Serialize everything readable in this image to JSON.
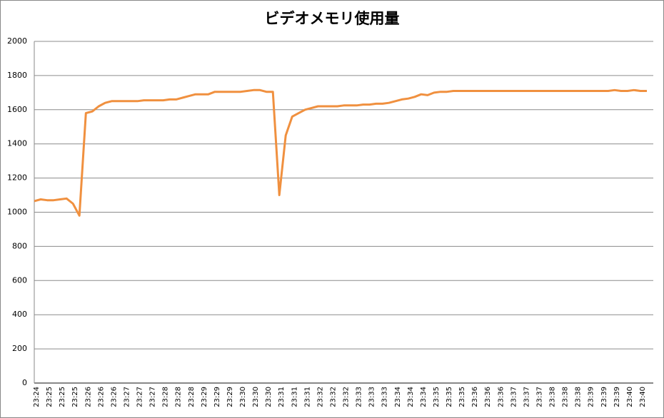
{
  "chart_data": {
    "type": "line",
    "title": "ビデオメモリ使用量",
    "categories": [
      "23:24",
      null,
      "23:25",
      null,
      "23:25",
      null,
      "23:25",
      null,
      "23:26",
      null,
      "23:26",
      null,
      "23:26",
      null,
      "23:27",
      null,
      "23:27",
      null,
      "23:27",
      null,
      "23:28",
      null,
      "23:28",
      null,
      "23:28",
      null,
      "23:29",
      null,
      "23:29",
      null,
      "23:29",
      null,
      "23:30",
      null,
      "23:30",
      null,
      "23:30",
      null,
      "23:31",
      null,
      "23:31",
      null,
      "23:31",
      null,
      "23:32",
      null,
      "23:32",
      null,
      "23:32",
      null,
      "23:33",
      null,
      "23:33",
      null,
      "23:33",
      null,
      "23:34",
      null,
      "23:34",
      null,
      "23:34",
      null,
      "23:35",
      null,
      "23:35",
      null,
      "23:35",
      null,
      "23:36",
      null,
      "23:36",
      null,
      "23:36",
      null,
      "23:37",
      null,
      "23:37",
      null,
      "23:37",
      null,
      "23:38",
      null,
      "23:38",
      null,
      "23:38",
      null,
      "23:39",
      null,
      "23:39",
      null,
      "23:39",
      null,
      "23:40",
      null,
      "23:40",
      null
    ],
    "series": [
      {
        "color": "#f0903f",
        "values": [
          1065,
          1075,
          1070,
          1070,
          1075,
          1080,
          1050,
          980,
          1580,
          1590,
          1620,
          1640,
          1650,
          1650,
          1650,
          1650,
          1650,
          1655,
          1655,
          1655,
          1655,
          1660,
          1660,
          1670,
          1680,
          1690,
          1690,
          1690,
          1705,
          1705,
          1705,
          1705,
          1705,
          1710,
          1715,
          1715,
          1705,
          1705,
          1100,
          1450,
          1560,
          1580,
          1600,
          1610,
          1620,
          1620,
          1620,
          1620,
          1625,
          1625,
          1625,
          1630,
          1630,
          1635,
          1635,
          1640,
          1650,
          1660,
          1665,
          1675,
          1690,
          1685,
          1700,
          1705,
          1705,
          1710,
          1710,
          1710,
          1710,
          1710,
          1710,
          1710,
          1710,
          1710,
          1710,
          1710,
          1710,
          1710,
          1710,
          1710,
          1710,
          1710,
          1710,
          1710,
          1710,
          1710,
          1710,
          1710,
          1710,
          1710,
          1715,
          1710,
          1710,
          1715,
          1710,
          1710
        ]
      }
    ],
    "ylim": [
      0,
      2000
    ],
    "yticks": [
      0,
      200,
      400,
      600,
      800,
      1000,
      1200,
      1400,
      1600,
      1800,
      2000
    ],
    "grid": true
  }
}
